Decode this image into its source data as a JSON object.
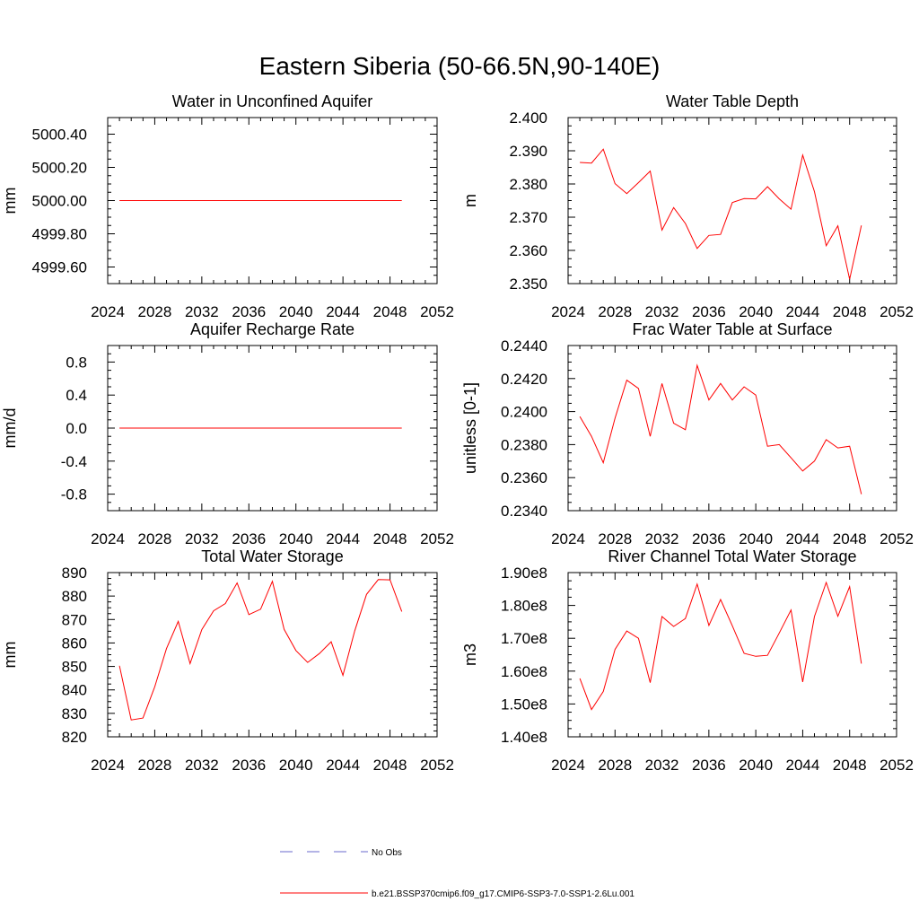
{
  "page": {
    "title": "Eastern Siberia (50-66.5N,90-140E)"
  },
  "legend": {
    "obs_label": "No Obs",
    "model_label": "b.e21.BSSP370cmip6.f09_g17.CMIP6-SSP3-7.0-SSP1-2.6Lu.001",
    "obs_color": "#6a6acd",
    "model_color": "#ff0000"
  },
  "chart_data": [
    {
      "type": "line",
      "title": "Water in Unconfined Aquifer",
      "ylabel": "mm",
      "xlim": [
        2024,
        2052
      ],
      "xticks": [
        "2024",
        "2028",
        "2032",
        "2036",
        "2040",
        "2044",
        "2048",
        "2052"
      ],
      "ylim": [
        4999.5,
        5000.5
      ],
      "yticks": [
        {
          "value": 4999.6,
          "label": "4999.60"
        },
        {
          "value": 4999.8,
          "label": "4999.80"
        },
        {
          "value": 5000.0,
          "label": "5000.00"
        },
        {
          "value": 5000.2,
          "label": "5000.20"
        },
        {
          "value": 5000.4,
          "label": "5000.40"
        }
      ],
      "x": [
        2025,
        2026,
        2027,
        2028,
        2029,
        2030,
        2031,
        2032,
        2033,
        2034,
        2035,
        2036,
        2037,
        2038,
        2039,
        2040,
        2041,
        2042,
        2043,
        2044,
        2045,
        2046,
        2047,
        2048,
        2049
      ],
      "series": [
        {
          "color": "#ff0000",
          "values": [
            5000.0,
            5000.0,
            5000.0,
            5000.0,
            5000.0,
            5000.0,
            5000.0,
            5000.0,
            5000.0,
            5000.0,
            5000.0,
            5000.0,
            5000.0,
            5000.0,
            5000.0,
            5000.0,
            5000.0,
            5000.0,
            5000.0,
            5000.0,
            5000.0,
            5000.0,
            5000.0,
            5000.0,
            5000.0
          ]
        }
      ]
    },
    {
      "type": "line",
      "title": "Water Table Depth",
      "ylabel": "m",
      "xlim": [
        2024,
        2052
      ],
      "xticks": [
        "2024",
        "2028",
        "2032",
        "2036",
        "2040",
        "2044",
        "2048",
        "2052"
      ],
      "ylim": [
        2.35,
        2.4
      ],
      "yticks": [
        {
          "value": 2.35,
          "label": "2.350"
        },
        {
          "value": 2.36,
          "label": "2.360"
        },
        {
          "value": 2.37,
          "label": "2.370"
        },
        {
          "value": 2.38,
          "label": "2.380"
        },
        {
          "value": 2.39,
          "label": "2.390"
        },
        {
          "value": 2.4,
          "label": "2.400"
        }
      ],
      "x": [
        2025,
        2026,
        2027,
        2028,
        2029,
        2030,
        2031,
        2032,
        2033,
        2034,
        2035,
        2036,
        2037,
        2038,
        2039,
        2040,
        2041,
        2042,
        2043,
        2044,
        2045,
        2046,
        2047,
        2048,
        2049
      ],
      "series": [
        {
          "color": "#ff0000",
          "values": [
            2.3865,
            2.3863,
            2.3905,
            2.3801,
            2.3771,
            2.3804,
            2.3839,
            2.3661,
            2.3729,
            2.3681,
            2.3606,
            2.3645,
            2.3648,
            2.3744,
            2.3756,
            2.3755,
            2.3792,
            2.3755,
            2.3724,
            2.3887,
            2.3777,
            2.3614,
            2.3674,
            2.3513,
            2.3675
          ]
        }
      ]
    },
    {
      "type": "line",
      "title": "Aquifer Recharge Rate",
      "ylabel": "mm/d",
      "xlim": [
        2024,
        2052
      ],
      "xticks": [
        "2024",
        "2028",
        "2032",
        "2036",
        "2040",
        "2044",
        "2048",
        "2052"
      ],
      "ylim": [
        -1.0,
        1.0
      ],
      "yticks": [
        {
          "value": -0.8,
          "label": "-0.8"
        },
        {
          "value": -0.4,
          "label": "-0.4"
        },
        {
          "value": 0.0,
          "label": "0.0"
        },
        {
          "value": 0.4,
          "label": "0.4"
        },
        {
          "value": 0.8,
          "label": "0.8"
        }
      ],
      "x": [
        2025,
        2026,
        2027,
        2028,
        2029,
        2030,
        2031,
        2032,
        2033,
        2034,
        2035,
        2036,
        2037,
        2038,
        2039,
        2040,
        2041,
        2042,
        2043,
        2044,
        2045,
        2046,
        2047,
        2048,
        2049
      ],
      "series": [
        {
          "color": "#ff0000",
          "values": [
            0.0,
            0.0,
            0.0,
            0.0,
            0.0,
            0.0,
            0.0,
            0.0,
            0.0,
            0.0,
            0.0,
            0.0,
            0.0,
            0.0,
            0.0,
            0.0,
            0.0,
            0.0,
            0.0,
            0.0,
            0.0,
            0.0,
            0.0,
            0.0,
            0.0
          ]
        }
      ]
    },
    {
      "type": "line",
      "title": "Frac Water Table at Surface",
      "ylabel": "unitless [0-1]",
      "xlim": [
        2024,
        2052
      ],
      "xticks": [
        "2024",
        "2028",
        "2032",
        "2036",
        "2040",
        "2044",
        "2048",
        "2052"
      ],
      "ylim": [
        0.234,
        0.244
      ],
      "yticks": [
        {
          "value": 0.234,
          "label": "0.2340"
        },
        {
          "value": 0.236,
          "label": "0.2360"
        },
        {
          "value": 0.238,
          "label": "0.2380"
        },
        {
          "value": 0.24,
          "label": "0.2400"
        },
        {
          "value": 0.242,
          "label": "0.2420"
        },
        {
          "value": 0.244,
          "label": "0.2440"
        }
      ],
      "x": [
        2025,
        2026,
        2027,
        2028,
        2029,
        2030,
        2031,
        2032,
        2033,
        2034,
        2035,
        2036,
        2037,
        2038,
        2039,
        2040,
        2041,
        2042,
        2043,
        2044,
        2045,
        2046,
        2047,
        2048,
        2049
      ],
      "series": [
        {
          "color": "#ff0000",
          "values": [
            0.2397,
            0.2385,
            0.2369,
            0.2396,
            0.2419,
            0.2414,
            0.2385,
            0.2417,
            0.2393,
            0.2389,
            0.2428,
            0.2407,
            0.2417,
            0.2407,
            0.2415,
            0.241,
            0.2379,
            0.238,
            0.2372,
            0.2364,
            0.237,
            0.2383,
            0.2378,
            0.2379,
            0.235
          ]
        }
      ]
    },
    {
      "type": "line",
      "title": "Total Water Storage",
      "ylabel": "mm",
      "xlim": [
        2024,
        2052
      ],
      "xticks": [
        "2024",
        "2028",
        "2032",
        "2036",
        "2040",
        "2044",
        "2048",
        "2052"
      ],
      "ylim": [
        820,
        890
      ],
      "yticks": [
        {
          "value": 820,
          "label": "820"
        },
        {
          "value": 830,
          "label": "830"
        },
        {
          "value": 840,
          "label": "840"
        },
        {
          "value": 850,
          "label": "850"
        },
        {
          "value": 860,
          "label": "860"
        },
        {
          "value": 870,
          "label": "870"
        },
        {
          "value": 880,
          "label": "880"
        },
        {
          "value": 890,
          "label": "890"
        }
      ],
      "x": [
        2025,
        2026,
        2027,
        2028,
        2029,
        2030,
        2031,
        2032,
        2033,
        2034,
        2035,
        2036,
        2037,
        2038,
        2039,
        2040,
        2041,
        2042,
        2043,
        2044,
        2045,
        2046,
        2047,
        2048,
        2049
      ],
      "series": [
        {
          "color": "#ff0000",
          "values": [
            850.3,
            827.2,
            828.0,
            841.3,
            857.6,
            869.2,
            851.2,
            865.7,
            873.7,
            876.8,
            885.6,
            872.1,
            874.4,
            886.3,
            865.8,
            856.8,
            851.7,
            855.5,
            860.5,
            846.2,
            865.2,
            880.7,
            887.0,
            886.9,
            873.4
          ]
        }
      ]
    },
    {
      "type": "line",
      "title": "River Channel Total Water Storage",
      "ylabel": "m3",
      "xlim": [
        2024,
        2052
      ],
      "xticks": [
        "2024",
        "2028",
        "2032",
        "2036",
        "2040",
        "2044",
        "2048",
        "2052"
      ],
      "ylim": [
        1.4,
        1.9
      ],
      "yticks": [
        {
          "value": 1.4,
          "label": "1.40e8"
        },
        {
          "value": 1.5,
          "label": "1.50e8"
        },
        {
          "value": 1.6,
          "label": "1.60e8"
        },
        {
          "value": 1.7,
          "label": "1.70e8"
        },
        {
          "value": 1.8,
          "label": "1.80e8"
        },
        {
          "value": 1.9,
          "label": "1.90e8"
        }
      ],
      "x": [
        2025,
        2026,
        2027,
        2028,
        2029,
        2030,
        2031,
        2032,
        2033,
        2034,
        2035,
        2036,
        2037,
        2038,
        2039,
        2040,
        2041,
        2042,
        2043,
        2044,
        2045,
        2046,
        2047,
        2048,
        2049
      ],
      "series": [
        {
          "color": "#ff0000",
          "values": [
            1.578,
            1.483,
            1.538,
            1.666,
            1.722,
            1.7,
            1.565,
            1.766,
            1.736,
            1.76,
            1.865,
            1.739,
            1.818,
            1.738,
            1.654,
            1.645,
            1.648,
            1.716,
            1.786,
            1.567,
            1.766,
            1.87,
            1.767,
            1.857,
            1.623
          ]
        }
      ]
    }
  ]
}
